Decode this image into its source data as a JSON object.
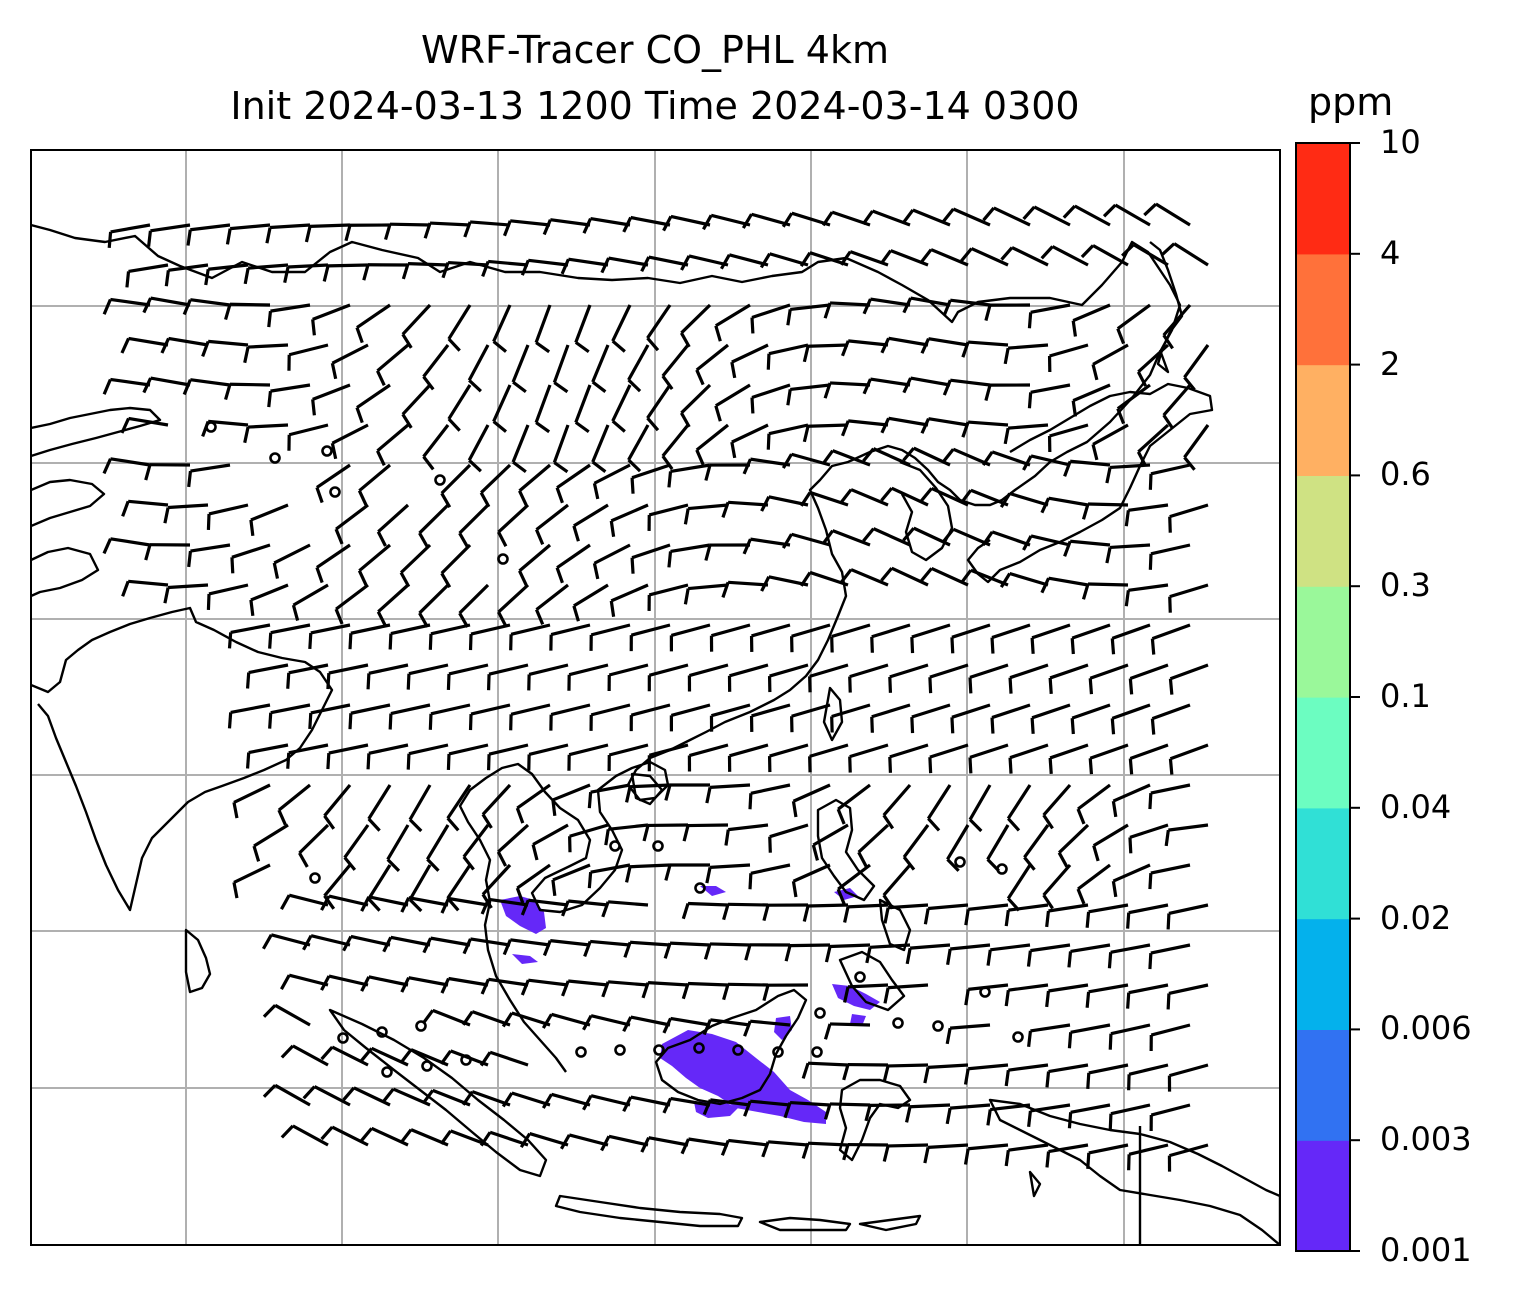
{
  "title": {
    "line1": "WRF-Tracer CO_PHL 4km",
    "line2": "Init 2024-03-13 1200 Time 2024-03-14 0300"
  },
  "colorbar": {
    "unit": "ppm",
    "levels": [
      "0.001",
      "0.003",
      "0.006",
      "0.02",
      "0.04",
      "0.1",
      "0.3",
      "0.6",
      "2",
      "4",
      "10"
    ],
    "colors": [
      "#6528f8",
      "#3172f2",
      "#04b1ec",
      "#30e0d6",
      "#6cfdc1",
      "#9af89a",
      "#cfe283",
      "#ffb062",
      "#ff713a",
      "#ff2b14"
    ]
  },
  "map": {
    "gridlines": true,
    "tracer_color": "#6528f8",
    "wind_barbs": "black",
    "calm_marker": "circle"
  }
}
